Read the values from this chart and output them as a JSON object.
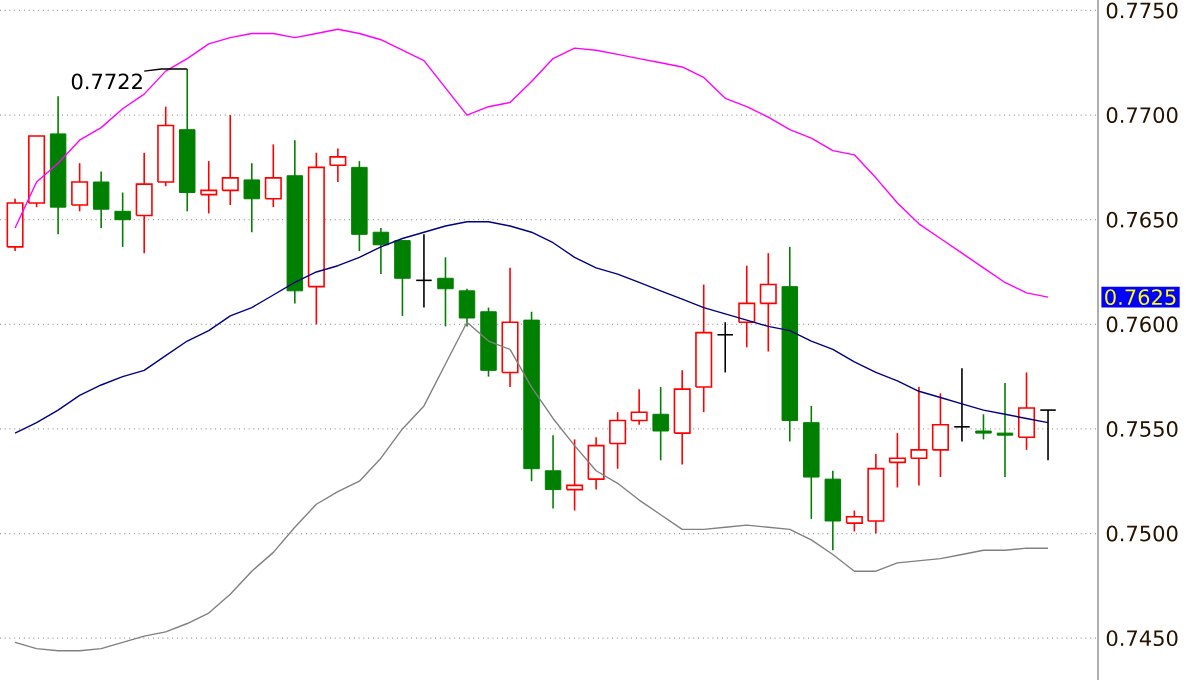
{
  "chart_data": {
    "type": "candlestick",
    "categories": [
      null,
      null,
      null,
      null,
      null,
      null,
      null,
      null,
      null,
      null,
      null,
      null,
      null,
      null,
      null,
      null,
      null,
      null,
      null,
      null,
      null,
      null,
      null,
      null,
      null,
      null,
      null,
      null,
      null,
      null,
      null,
      null,
      null,
      null,
      null,
      null,
      null,
      null,
      null,
      null,
      null,
      null,
      null,
      null,
      null,
      null,
      null,
      null,
      null
    ],
    "ohlc": [
      [
        0.7637,
        0.766,
        0.7635,
        0.7658
      ],
      [
        0.7658,
        0.769,
        0.7656,
        0.769
      ],
      [
        0.7691,
        0.7709,
        0.7643,
        0.7656
      ],
      [
        0.7657,
        0.7677,
        0.7654,
        0.7668
      ],
      [
        0.7668,
        0.7673,
        0.7646,
        0.7655
      ],
      [
        0.7654,
        0.7663,
        0.7637,
        0.765
      ],
      [
        0.7652,
        0.7682,
        0.7634,
        0.7667
      ],
      [
        0.7668,
        0.7704,
        0.7666,
        0.7695
      ],
      [
        0.7693,
        0.7722,
        0.7654,
        0.7663
      ],
      [
        0.7662,
        0.7678,
        0.7653,
        0.7664
      ],
      [
        0.7664,
        0.77,
        0.7657,
        0.767
      ],
      [
        0.7669,
        0.7677,
        0.7644,
        0.766
      ],
      [
        0.766,
        0.7686,
        0.7656,
        0.767
      ],
      [
        0.7671,
        0.7688,
        0.761,
        0.7616
      ],
      [
        0.7618,
        0.7682,
        0.76,
        0.7675
      ],
      [
        0.7676,
        0.7684,
        0.7668,
        0.768
      ],
      [
        0.7675,
        0.7678,
        0.7635,
        0.7643
      ],
      [
        0.7644,
        0.7646,
        0.7624,
        0.7638
      ],
      [
        0.764,
        0.764,
        0.7604,
        0.7622
      ],
      [
        0.7621,
        0.7643,
        0.7608,
        0.7621
      ],
      [
        0.7622,
        0.7632,
        0.7599,
        0.7617
      ],
      [
        0.7616,
        0.7617,
        0.7599,
        0.7603
      ],
      [
        0.7606,
        0.7608,
        0.7575,
        0.7578
      ],
      [
        0.7577,
        0.7627,
        0.757,
        0.7601
      ],
      [
        0.7602,
        0.7606,
        0.7525,
        0.7531
      ],
      [
        0.753,
        0.7547,
        0.7512,
        0.7521
      ],
      [
        0.7521,
        0.7545,
        0.7511,
        0.7523
      ],
      [
        0.7526,
        0.7546,
        0.7521,
        0.7542
      ],
      [
        0.7543,
        0.7558,
        0.7531,
        0.7554
      ],
      [
        0.7554,
        0.7569,
        0.7552,
        0.7558
      ],
      [
        0.7557,
        0.757,
        0.7535,
        0.7549
      ],
      [
        0.7548,
        0.7578,
        0.7533,
        0.7569
      ],
      [
        0.757,
        0.7619,
        0.7558,
        0.7596
      ],
      [
        0.7595,
        0.7601,
        0.7577,
        0.7595
      ],
      [
        0.7601,
        0.7628,
        0.7589,
        0.761
      ],
      [
        0.761,
        0.7634,
        0.7587,
        0.7619
      ],
      [
        0.7618,
        0.7637,
        0.7544,
        0.7554
      ],
      [
        0.7553,
        0.7561,
        0.7507,
        0.7527
      ],
      [
        0.7526,
        0.753,
        0.7492,
        0.7506
      ],
      [
        0.7505,
        0.7511,
        0.7501,
        0.7508
      ],
      [
        0.7506,
        0.7538,
        0.75,
        0.7531
      ],
      [
        0.7534,
        0.7548,
        0.7522,
        0.7536
      ],
      [
        0.7536,
        0.757,
        0.7523,
        0.754
      ],
      [
        0.754,
        0.7567,
        0.7527,
        0.7552
      ],
      [
        0.7551,
        0.7579,
        0.7544,
        0.7551
      ],
      [
        0.7549,
        0.7557,
        0.7545,
        0.7548
      ],
      [
        0.7548,
        0.7572,
        0.7527,
        0.7547
      ],
      [
        0.7546,
        0.7577,
        0.754,
        0.756
      ],
      [
        0.7559,
        0.7559,
        0.7535,
        0.7559
      ]
    ],
    "series": [
      {
        "type": "line",
        "color": "#ff00ff",
        "values": [
          0.7646,
          0.7668,
          0.7677,
          0.7688,
          0.7694,
          0.7703,
          0.771,
          0.7721,
          0.7727,
          0.7734,
          0.7737,
          0.7739,
          0.7739,
          0.7737,
          0.7739,
          0.7741,
          0.7739,
          0.7736,
          0.7731,
          0.7726,
          0.7713,
          0.77,
          0.7704,
          0.7706,
          0.7716,
          0.7727,
          0.7732,
          0.7731,
          0.7729,
          0.7727,
          0.7725,
          0.7723,
          0.7718,
          0.7708,
          0.7704,
          0.7699,
          0.7693,
          0.7689,
          0.7683,
          0.7681,
          0.767,
          0.7658,
          0.7648,
          0.7641,
          0.7634,
          0.7627,
          0.762,
          0.7615,
          0.7613
        ]
      },
      {
        "type": "line",
        "color": "#000080",
        "values": [
          0.7548,
          0.7553,
          0.7559,
          0.7566,
          0.7571,
          0.7575,
          0.7578,
          0.7585,
          0.7592,
          0.7597,
          0.7604,
          0.7608,
          0.7614,
          0.762,
          0.7625,
          0.7628,
          0.7632,
          0.7637,
          0.7641,
          0.7644,
          0.7647,
          0.7649,
          0.7649,
          0.7647,
          0.7644,
          0.7639,
          0.7632,
          0.7627,
          0.7624,
          0.762,
          0.7616,
          0.7612,
          0.7608,
          0.7605,
          0.7602,
          0.7599,
          0.7597,
          0.7592,
          0.7588,
          0.7582,
          0.7577,
          0.7573,
          0.7568,
          0.7565,
          0.7562,
          0.7559,
          0.7557,
          0.7555,
          0.7553
        ]
      },
      {
        "type": "line",
        "color": "#808080",
        "values": [
          0.7448,
          0.7445,
          0.7444,
          0.7444,
          0.7445,
          0.7448,
          0.7451,
          0.7453,
          0.7457,
          0.7462,
          0.7471,
          0.7482,
          0.7491,
          0.7503,
          0.7514,
          0.752,
          0.7525,
          0.7536,
          0.755,
          0.7561,
          0.7581,
          0.7601,
          0.7592,
          0.7588,
          0.757,
          0.7555,
          0.7542,
          0.753,
          0.7524,
          0.7516,
          0.7509,
          0.7502,
          0.7502,
          0.7503,
          0.7504,
          0.7503,
          0.7502,
          0.7497,
          0.749,
          0.7482,
          0.7482,
          0.7486,
          0.7487,
          0.7488,
          0.749,
          0.7492,
          0.7492,
          0.7493,
          0.7493
        ]
      }
    ],
    "ylim": [
      0.743,
      0.7755
    ],
    "yticks": [
      {
        "value": 0.745,
        "label": "0.7450"
      },
      {
        "value": 0.75,
        "label": "0.7500"
      },
      {
        "value": 0.755,
        "label": "0.7550"
      },
      {
        "value": 0.76,
        "label": "0.7600"
      },
      {
        "value": 0.765,
        "label": "0.7650"
      },
      {
        "value": 0.77,
        "label": "0.7700"
      },
      {
        "value": 0.775,
        "label": "0.7750"
      }
    ],
    "grid": "y",
    "tick_labels": "y",
    "annotations": [
      "0.7722",
      "0.7625"
    ]
  }
}
